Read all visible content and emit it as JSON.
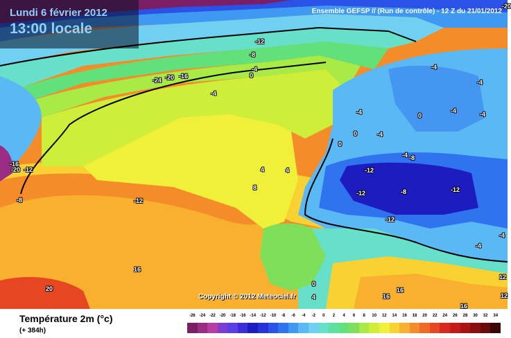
{
  "header": {
    "date": "Lundi 6 février 2012",
    "time": "13:00 locale",
    "run_info": "Ensemble GEFSP // (Run de contrôle)  -  12 Z du 21/01/2012"
  },
  "copyright": "Copyright © 2012 Meteociel.fr",
  "legend": {
    "variable": "Température 2m (°c)",
    "lead": "(+ 384h)",
    "labels": [
      "-26",
      "-24",
      "-22",
      "-20",
      "-18",
      "-16",
      "-14",
      "-12",
      "-10",
      "-8",
      "-6",
      "-4",
      "-2",
      "0",
      "2",
      "4",
      "6",
      "8",
      "10",
      "12",
      "14",
      "16",
      "18",
      "20",
      "22",
      "24",
      "26",
      "28",
      "30",
      "32",
      "34"
    ],
    "colors": [
      "#7a1f66",
      "#9a2c84",
      "#b53ca3",
      "#7c3ccf",
      "#5a3ee6",
      "#3b2ed8",
      "#1c1cc0",
      "#2533d8",
      "#2a52e6",
      "#2f74ee",
      "#3f98f2",
      "#5ab8f4",
      "#6fd0f2",
      "#66e0c8",
      "#5ee0a0",
      "#62e07a",
      "#7ee05a",
      "#a8ea46",
      "#cfee3a",
      "#f0f03a",
      "#f8d232",
      "#f8b02e",
      "#f48c2a",
      "#ee6a26",
      "#e64622",
      "#d82820",
      "#c41a1a",
      "#a81414",
      "#8a0e0e",
      "#6a0a0a",
      "#3a0606"
    ]
  },
  "map_labels": [
    {
      "text": "-12"
    },
    {
      "text": "-8"
    },
    {
      "text": "-4"
    },
    {
      "text": "0"
    },
    {
      "text": "-16"
    },
    {
      "text": "-20"
    },
    {
      "text": "-24"
    },
    {
      "text": "-4"
    },
    {
      "text": "-16"
    },
    {
      "text": "-20"
    },
    {
      "text": "-12"
    },
    {
      "text": "-8"
    },
    {
      "text": "-12"
    },
    {
      "text": "16"
    },
    {
      "text": "20"
    },
    {
      "text": "8"
    },
    {
      "text": "4"
    },
    {
      "text": "4"
    },
    {
      "text": "0"
    },
    {
      "text": "-4"
    },
    {
      "text": "-4"
    },
    {
      "text": "0"
    },
    {
      "text": "-8"
    },
    {
      "text": "-4"
    },
    {
      "text": "0"
    },
    {
      "text": "-4"
    },
    {
      "text": "-4"
    },
    {
      "text": "-4"
    },
    {
      "text": "-4"
    },
    {
      "text": "-8"
    },
    {
      "text": "-12"
    },
    {
      "text": "-12"
    },
    {
      "text": "-8"
    },
    {
      "text": "-12"
    },
    {
      "text": "-12"
    },
    {
      "text": "-4"
    },
    {
      "text": "-4"
    },
    {
      "text": "0"
    },
    {
      "text": "4"
    },
    {
      "text": "16"
    },
    {
      "text": "16"
    },
    {
      "text": "12"
    },
    {
      "text": "12"
    },
    {
      "text": "16"
    },
    {
      "text": "-20"
    }
  ]
}
